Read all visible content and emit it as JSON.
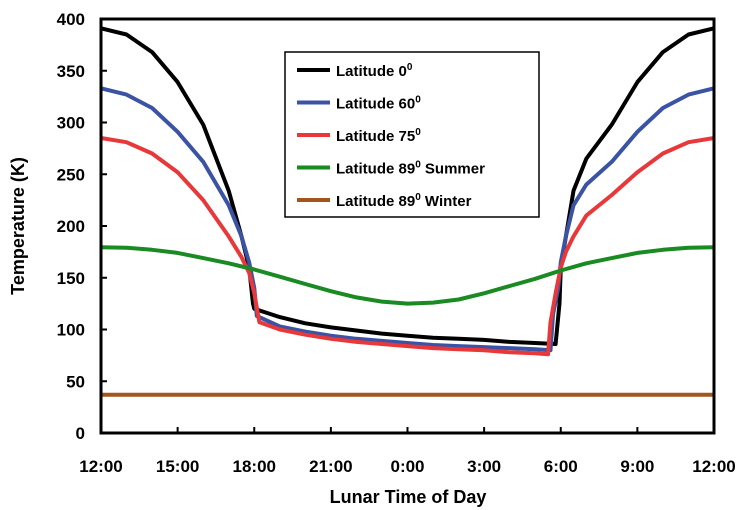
{
  "chart_data": {
    "type": "line",
    "xlabel": "Lunar Time of Day",
    "ylabel": "Temperature (K)",
    "ylim": [
      0,
      400
    ],
    "yticks": [
      0,
      50,
      100,
      150,
      200,
      250,
      300,
      350,
      400
    ],
    "xlim": [
      12,
      36
    ],
    "xtick_values": [
      12,
      15,
      18,
      21,
      24,
      27,
      30,
      33,
      36
    ],
    "xtick_labels": [
      "12:00",
      "15:00",
      "18:00",
      "21:00",
      "0:00",
      "3:00",
      "6:00",
      "9:00",
      "12:00"
    ],
    "grid": false,
    "legend_position": "top-center",
    "series": [
      {
        "name": "Latitude 0",
        "legend_sup": "0",
        "color": "#000000",
        "x": [
          12,
          13,
          14,
          15,
          16,
          17,
          17.5,
          17.8,
          17.95,
          18.0,
          19,
          20,
          21,
          22,
          23,
          24,
          25,
          26,
          27,
          28,
          29,
          29.8,
          29.8,
          29.95,
          30,
          30.2,
          30.5,
          31,
          32,
          33,
          34,
          35,
          36
        ],
        "y": [
          391,
          385,
          368,
          339,
          298,
          234,
          190,
          160,
          125,
          120,
          112,
          106,
          102,
          99,
          96,
          94,
          92,
          91,
          90,
          88,
          87,
          86,
          86,
          125,
          160,
          190,
          234,
          265,
          298,
          339,
          368,
          385,
          391
        ]
      },
      {
        "name": "Latitude 60",
        "legend_sup": "0",
        "color": "#3a53a4",
        "x": [
          12,
          13,
          14,
          15,
          16,
          17,
          17.5,
          17.8,
          18.0,
          18.1,
          19,
          20,
          21,
          22,
          23,
          24,
          25,
          26,
          27,
          28,
          29,
          29.6,
          29.7,
          29.9,
          30.0,
          30.2,
          30.5,
          31,
          32,
          33,
          34,
          35,
          36
        ],
        "y": [
          333,
          327,
          314,
          291,
          262,
          220,
          190,
          165,
          140,
          113,
          103,
          98,
          94,
          91,
          89,
          87,
          85,
          84,
          83,
          82,
          81,
          80,
          115,
          140,
          165,
          190,
          220,
          240,
          262,
          291,
          314,
          327,
          333
        ]
      },
      {
        "name": "Latitude 75",
        "legend_sup": "0",
        "color": "#e8383a",
        "x": [
          12,
          13,
          14,
          15,
          16,
          17,
          17.5,
          17.8,
          18.0,
          18.2,
          19,
          20,
          21,
          22,
          23,
          24,
          25,
          26,
          27,
          28,
          29,
          29.5,
          29.6,
          29.8,
          30.0,
          30.2,
          30.5,
          31,
          32,
          33,
          34,
          35,
          36
        ],
        "y": [
          285,
          281,
          270,
          252,
          225,
          190,
          170,
          155,
          135,
          107,
          100,
          95,
          91,
          88,
          86,
          84,
          82,
          81,
          80,
          78,
          77,
          76,
          107,
          135,
          160,
          175,
          190,
          210,
          230,
          252,
          270,
          281,
          285
        ]
      },
      {
        "name": "Latitude 89 Summer",
        "legend_sup": "0",
        "color": "#1a8a22",
        "x": [
          12,
          13,
          14,
          15,
          16,
          17,
          18,
          19,
          20,
          21,
          22,
          23,
          24,
          25,
          26,
          27,
          28,
          29,
          30,
          31,
          32,
          33,
          34,
          35,
          36
        ],
        "y": [
          179.5,
          179,
          177,
          174,
          169,
          164,
          158,
          151,
          144,
          137,
          131,
          127,
          125,
          126,
          129,
          135,
          142,
          149,
          157,
          164,
          169,
          174,
          177,
          179,
          179.5
        ]
      },
      {
        "name": "Latitude 89 Winter",
        "legend_sup": "0",
        "color": "#a0561c",
        "x": [
          12,
          36
        ],
        "y": [
          37,
          37
        ]
      }
    ],
    "legend_labels": [
      {
        "main": "Latitude 0",
        "sup": "0",
        "tail": ""
      },
      {
        "main": "Latitude 60",
        "sup": "0",
        "tail": ""
      },
      {
        "main": "Latitude 75",
        "sup": "0",
        "tail": ""
      },
      {
        "main": "Latitude 89",
        "sup": "0",
        "tail": " Summer"
      },
      {
        "main": "Latitude 89",
        "sup": "0",
        "tail": " Winter"
      }
    ]
  }
}
